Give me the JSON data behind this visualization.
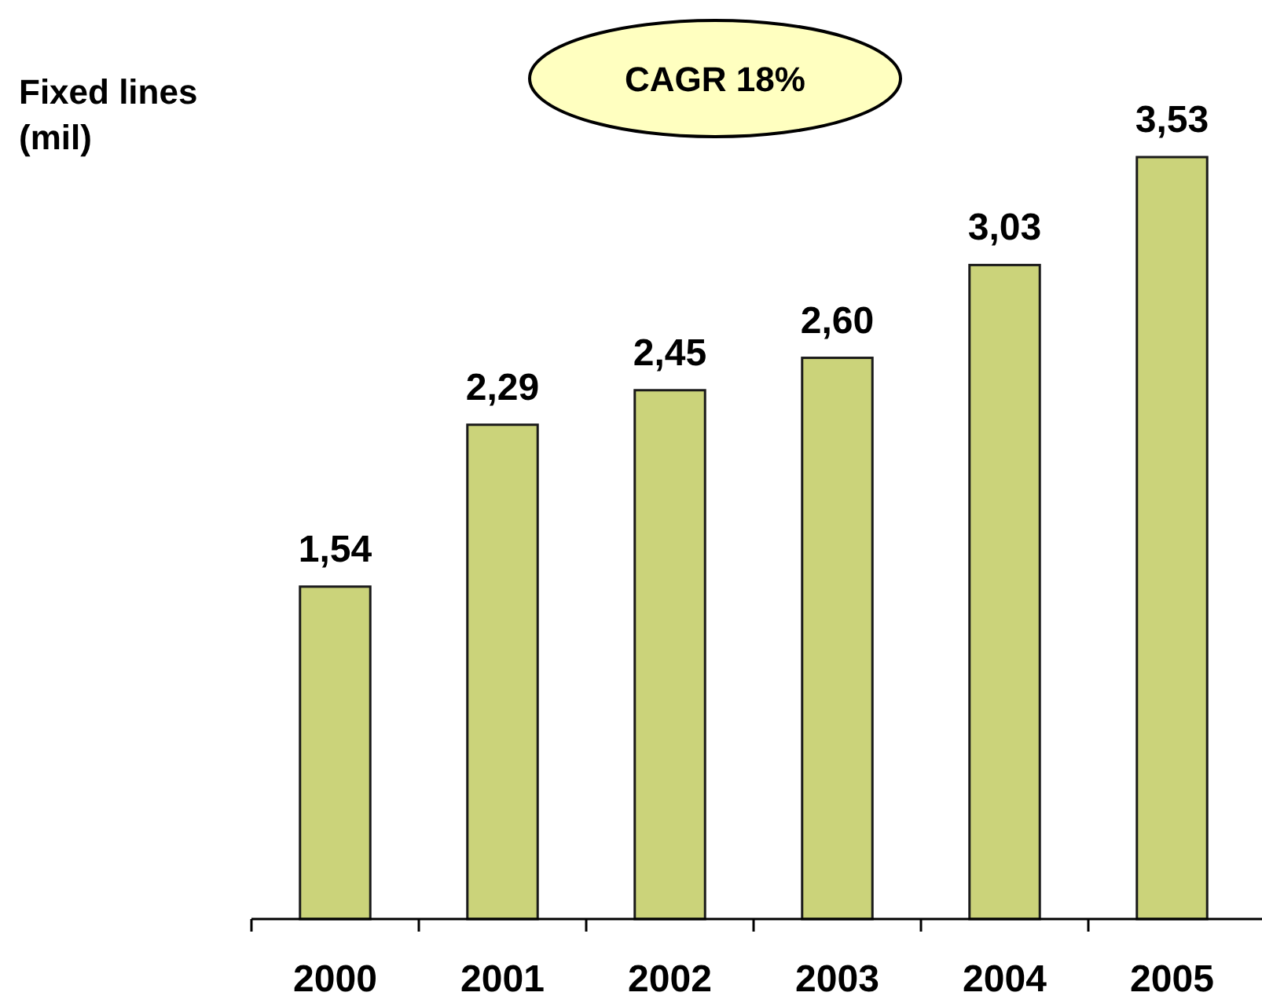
{
  "chart_data": {
    "type": "bar",
    "ylabel": "Fixed lines (mil)",
    "annotations": [
      "CAGR 18%"
    ],
    "categories": [
      "2000",
      "2001",
      "2002",
      "2003",
      "2004",
      "2005"
    ],
    "values": [
      1.54,
      2.29,
      2.45,
      2.6,
      3.03,
      3.53
    ],
    "color": "#cbd37a",
    "value_labels": [
      "1,54",
      "2,29",
      "2,45",
      "2,60",
      "3,03",
      "3,53"
    ]
  }
}
